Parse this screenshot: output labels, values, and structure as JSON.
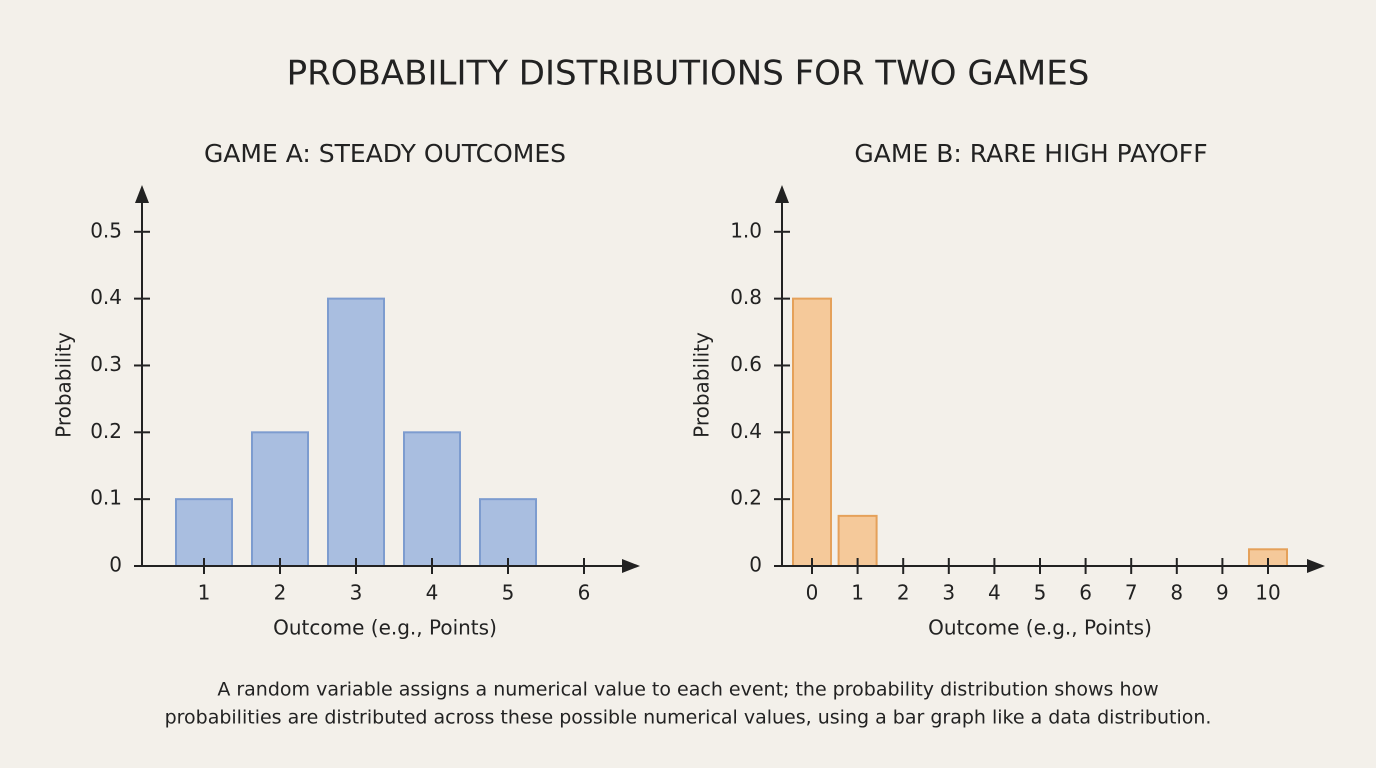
{
  "title": "PROBABILITY DISTRIBUTIONS FOR TWO GAMES",
  "chart_data": [
    {
      "type": "bar",
      "title": "GAME A: STEADY OUTCOMES",
      "x_label": "Outcome (e.g., Points)",
      "y_label": "Probability",
      "categories": [
        "1",
        "2",
        "3",
        "4",
        "5",
        "6"
      ],
      "values": [
        0.1,
        0.2,
        0.4,
        0.2,
        0.1,
        0
      ],
      "color": "#a9bee0",
      "edge_color": "#7d9ccf",
      "ylim": [
        0,
        0.57
      ],
      "yticks": [
        0,
        0.1,
        0.2,
        0.3,
        0.4,
        0.5
      ]
    },
    {
      "type": "bar",
      "title": "GAME B: RARE HIGH PAYOFF",
      "x_label": "Outcome (e.g., Points)",
      "y_label": "Probability",
      "categories": [
        "0",
        "1",
        "2",
        "3",
        "4",
        "5",
        "6",
        "7",
        "8",
        "9",
        "10"
      ],
      "values": [
        0.8,
        0.15,
        0,
        0,
        0,
        0,
        0,
        0,
        0,
        0,
        0.05
      ],
      "color": "#f5c99a",
      "edge_color": "#e5a15a",
      "ylim": [
        0,
        1.14
      ],
      "yticks": [
        0,
        0.2,
        0.4,
        0.6,
        0.8,
        {
          "value": 1,
          "label": "1.0"
        }
      ]
    }
  ],
  "caption": [
    "A random variable assigns a numerical value to each event; the probability distribution shows how",
    "probabilities are distributed across these possible numerical values, using a bar graph like a data distribution."
  ]
}
